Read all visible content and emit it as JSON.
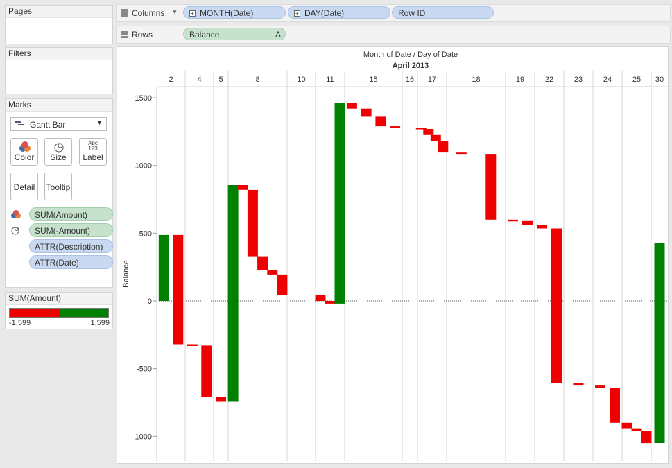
{
  "side": {
    "pages_title": "Pages",
    "filters_title": "Filters",
    "marks_title": "Marks",
    "mark_type": "Gantt Bar",
    "buttons": {
      "color": "Color",
      "size": "Size",
      "label": "Label",
      "detail": "Detail",
      "tooltip": "Tooltip",
      "label_icon_text": "Abc\n123"
    },
    "fields": [
      "SUM(Amount)",
      "SUM(-Amount)",
      "ATTR(Description)",
      "ATTR(Date)"
    ],
    "legend_title": "SUM(Amount)",
    "legend_min": "-1,599",
    "legend_max": "1,599",
    "legend_colors": {
      "negative": "#ee0000",
      "positive": "#008000"
    }
  },
  "shelves": {
    "columns_label": "Columns",
    "rows_label": "Rows",
    "column_pills": [
      "MONTH(Date)",
      "DAY(Date)",
      "Row ID"
    ],
    "row_pill": "Balance",
    "row_pill_delta": "Δ"
  },
  "chart_data": {
    "type": "bar",
    "subtype": "gantt-waterfall",
    "header_title": "Month of Date  /  Day of Date",
    "header_month": "April 2013",
    "ylabel": "Balance",
    "ylim": [
      -1180,
      1530
    ],
    "yticks": [
      1500,
      1000,
      500,
      0,
      -500,
      -1000
    ],
    "colors": {
      "positive": "#008000",
      "negative": "#ee0000"
    },
    "days": [
      {
        "day": "2",
        "bars": [
          [
            0,
            487
          ],
          [
            487,
            -320
          ]
        ]
      },
      {
        "day": "4",
        "bars": [
          [
            -320,
            -330
          ],
          [
            -330,
            -710
          ]
        ]
      },
      {
        "day": "5",
        "bars": [
          [
            -710,
            -745
          ]
        ]
      },
      {
        "day": "8",
        "bars": [
          [
            -745,
            855
          ],
          [
            855,
            820
          ],
          [
            820,
            330
          ],
          [
            330,
            230
          ],
          [
            230,
            195
          ],
          [
            195,
            45
          ]
        ]
      },
      {
        "day": "10",
        "bars": []
      },
      {
        "day": "11",
        "bars": [
          [
            45,
            0
          ],
          [
            0,
            -20
          ],
          [
            -20,
            1460
          ]
        ]
      },
      {
        "day": "15",
        "bars": [
          [
            1460,
            1420
          ],
          [
            1420,
            1360
          ],
          [
            1360,
            1290
          ],
          [
            1290,
            1280
          ]
        ]
      },
      {
        "day": "16",
        "bars": []
      },
      {
        "day": "17",
        "bars": [
          [
            1280,
            1270
          ],
          [
            1270,
            1230
          ],
          [
            1230,
            1180
          ],
          [
            1180,
            1100
          ]
        ]
      },
      {
        "day": "18",
        "bars": [
          [
            1100,
            1085
          ],
          [
            1085,
            600
          ]
        ]
      },
      {
        "day": "19",
        "bars": [
          [
            600,
            590
          ],
          [
            590,
            560
          ]
        ]
      },
      {
        "day": "22",
        "bars": [
          [
            560,
            535
          ],
          [
            535,
            -605
          ]
        ]
      },
      {
        "day": "23",
        "bars": [
          [
            -605,
            -625
          ]
        ]
      },
      {
        "day": "24",
        "bars": [
          [
            -625,
            -640
          ],
          [
            -640,
            -900
          ]
        ]
      },
      {
        "day": "25",
        "bars": [
          [
            -900,
            -945
          ],
          [
            -945,
            -960
          ],
          [
            -960,
            -1050
          ]
        ]
      },
      {
        "day": "30",
        "bars": [
          [
            -1050,
            430
          ]
        ]
      }
    ]
  }
}
